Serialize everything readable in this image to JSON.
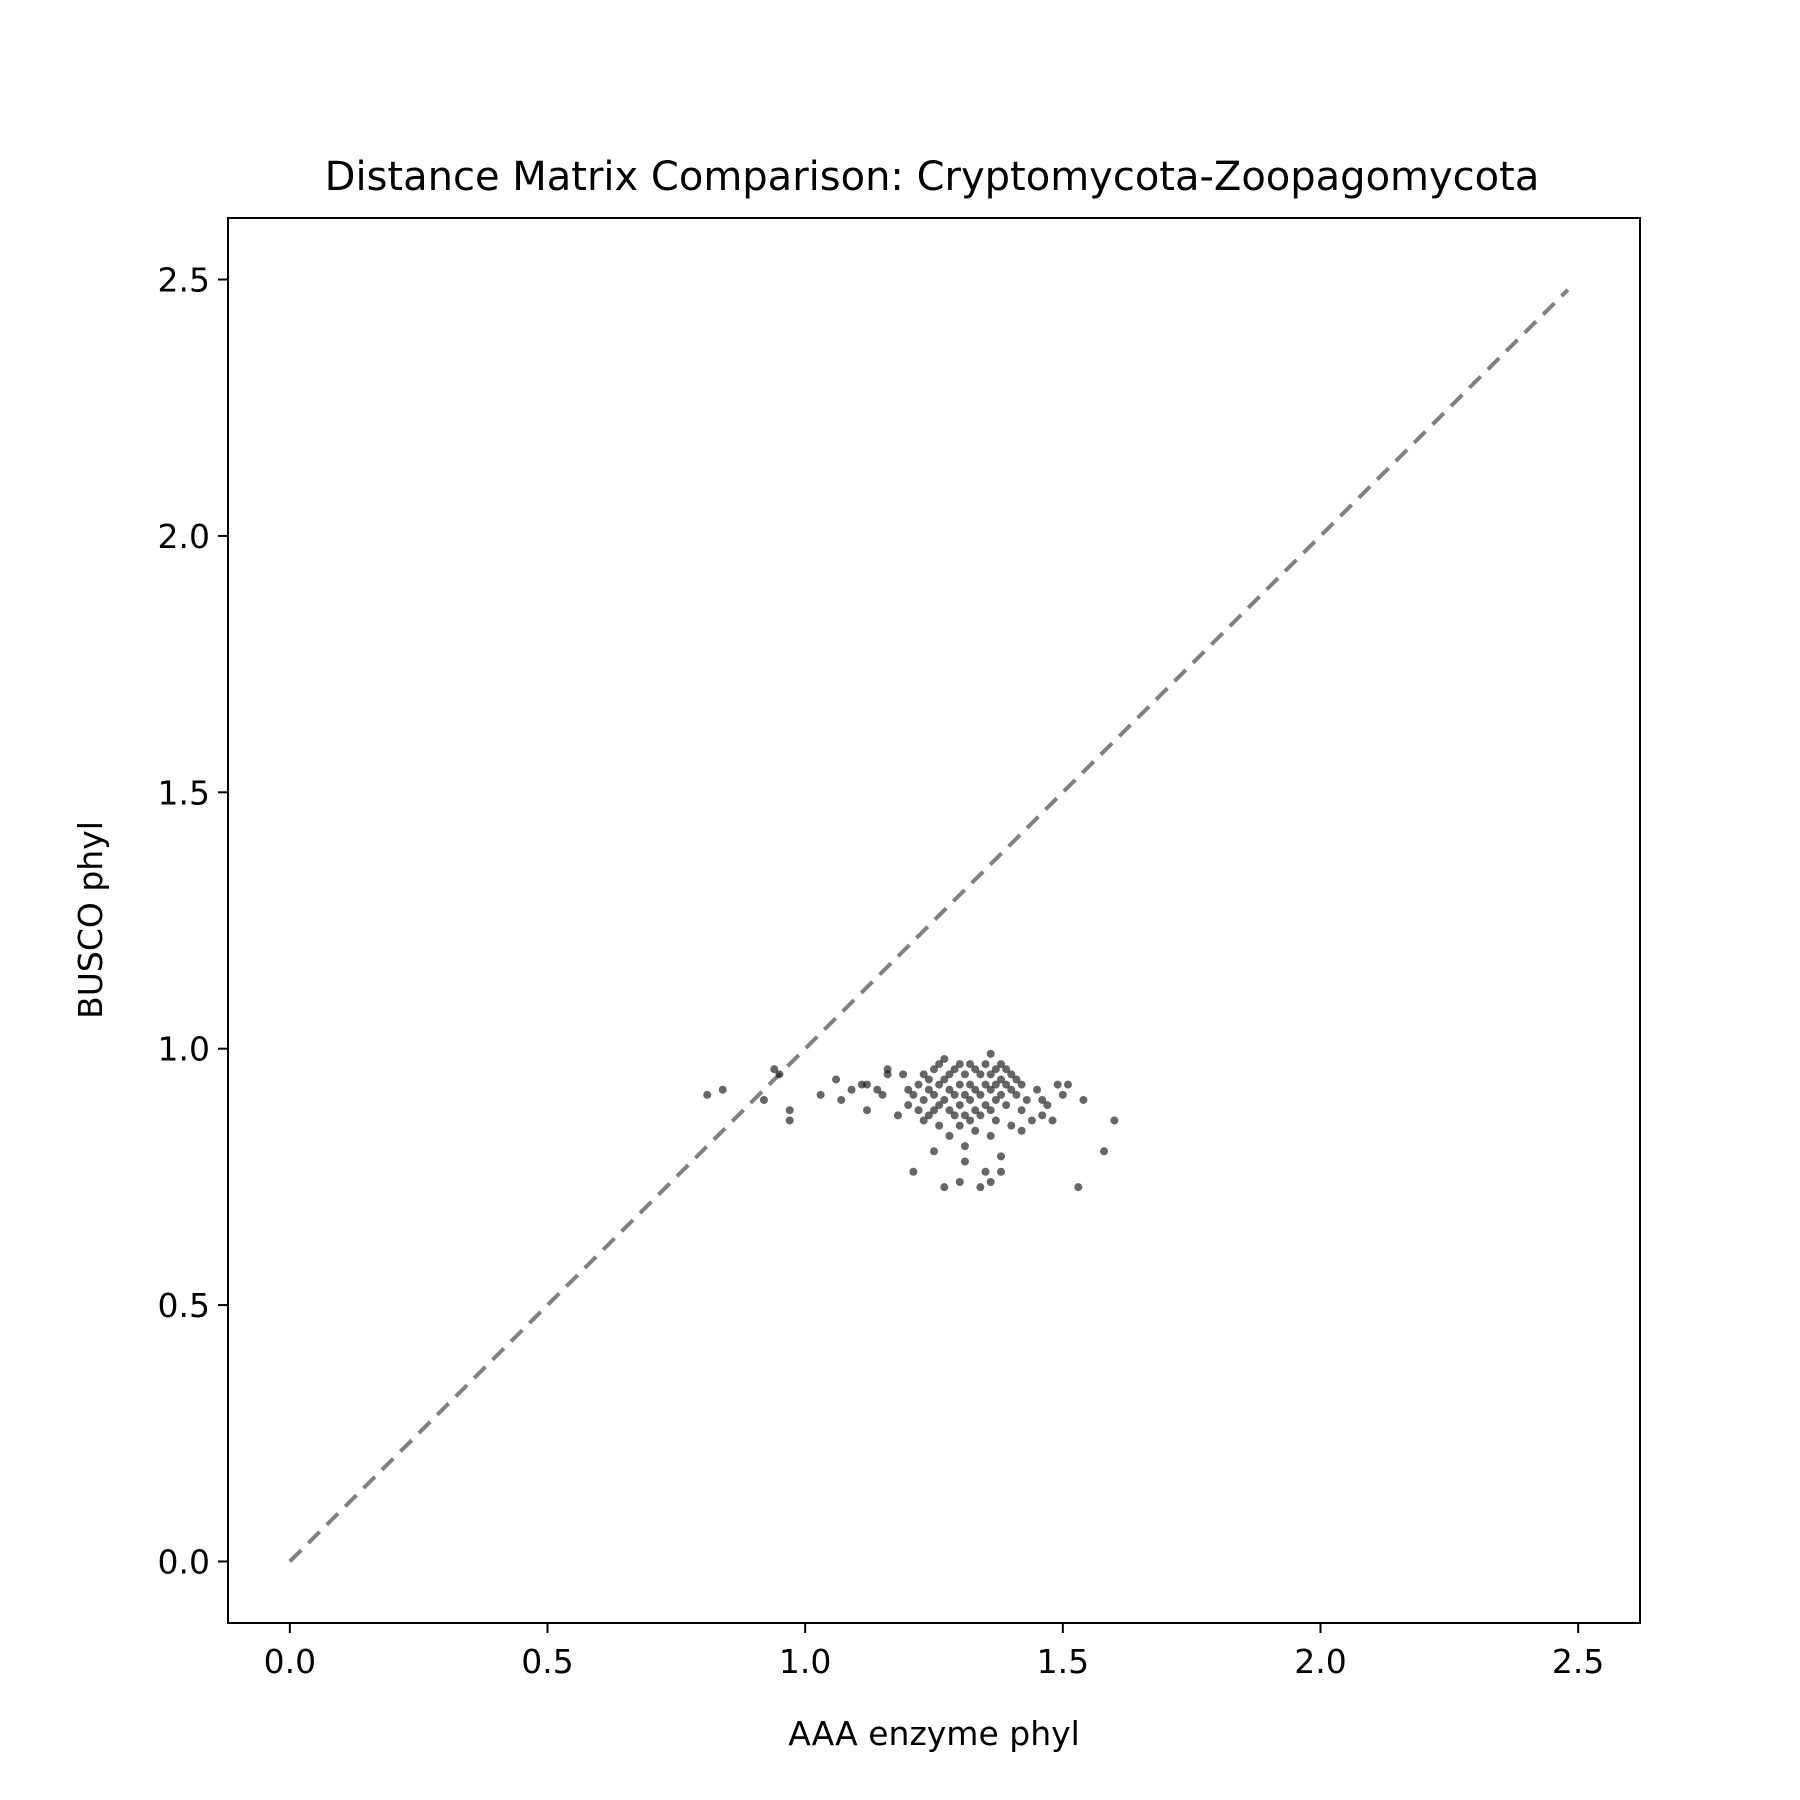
{
  "chart_data": {
    "type": "scatter",
    "title": "Distance Matrix Comparison: Cryptomycota-Zoopagomycota",
    "xlabel": "AAA enzyme phyl",
    "ylabel": "BUSCO phyl",
    "xlim": [
      -0.12,
      2.62
    ],
    "ylim": [
      -0.12,
      2.62
    ],
    "xticks": [
      "0.0",
      "0.5",
      "1.0",
      "1.5",
      "2.0",
      "2.5"
    ],
    "yticks": [
      "0.0",
      "0.5",
      "1.0",
      "1.5",
      "2.0",
      "2.5"
    ],
    "grid": false,
    "reference_line": {
      "x": [
        0.0,
        2.48
      ],
      "y": [
        0.0,
        2.48
      ],
      "style": "dashed",
      "color": "#808080"
    },
    "point_color": "#000000",
    "point_alpha": 0.6,
    "series": [
      {
        "points": [
          [
            0.81,
            0.91
          ],
          [
            0.84,
            0.92
          ],
          [
            0.92,
            0.9
          ],
          [
            0.94,
            0.96
          ],
          [
            0.95,
            0.95
          ],
          [
            0.97,
            0.88
          ],
          [
            0.97,
            0.86
          ],
          [
            1.03,
            0.91
          ],
          [
            1.06,
            0.94
          ],
          [
            1.07,
            0.9
          ],
          [
            1.09,
            0.92
          ],
          [
            1.11,
            0.93
          ],
          [
            1.12,
            0.93
          ],
          [
            1.12,
            0.88
          ],
          [
            1.14,
            0.92
          ],
          [
            1.15,
            0.91
          ],
          [
            1.16,
            0.96
          ],
          [
            1.16,
            0.95
          ],
          [
            1.18,
            0.87
          ],
          [
            1.19,
            0.95
          ],
          [
            1.2,
            0.92
          ],
          [
            1.2,
            0.89
          ],
          [
            1.21,
            0.91
          ],
          [
            1.21,
            0.76
          ],
          [
            1.22,
            0.93
          ],
          [
            1.22,
            0.88
          ],
          [
            1.23,
            0.95
          ],
          [
            1.23,
            0.9
          ],
          [
            1.23,
            0.86
          ],
          [
            1.24,
            0.94
          ],
          [
            1.24,
            0.92
          ],
          [
            1.24,
            0.87
          ],
          [
            1.25,
            0.96
          ],
          [
            1.25,
            0.91
          ],
          [
            1.25,
            0.88
          ],
          [
            1.25,
            0.8
          ],
          [
            1.26,
            0.97
          ],
          [
            1.26,
            0.93
          ],
          [
            1.26,
            0.89
          ],
          [
            1.26,
            0.85
          ],
          [
            1.27,
            0.98
          ],
          [
            1.27,
            0.94
          ],
          [
            1.27,
            0.9
          ],
          [
            1.27,
            0.73
          ],
          [
            1.28,
            0.95
          ],
          [
            1.28,
            0.92
          ],
          [
            1.28,
            0.88
          ],
          [
            1.28,
            0.83
          ],
          [
            1.29,
            0.96
          ],
          [
            1.29,
            0.91
          ],
          [
            1.29,
            0.87
          ],
          [
            1.3,
            0.97
          ],
          [
            1.3,
            0.93
          ],
          [
            1.3,
            0.89
          ],
          [
            1.3,
            0.85
          ],
          [
            1.3,
            0.74
          ],
          [
            1.31,
            0.95
          ],
          [
            1.31,
            0.91
          ],
          [
            1.31,
            0.87
          ],
          [
            1.31,
            0.81
          ],
          [
            1.31,
            0.78
          ],
          [
            1.32,
            0.97
          ],
          [
            1.32,
            0.93
          ],
          [
            1.32,
            0.9
          ],
          [
            1.32,
            0.86
          ],
          [
            1.33,
            0.96
          ],
          [
            1.33,
            0.92
          ],
          [
            1.33,
            0.88
          ],
          [
            1.33,
            0.84
          ],
          [
            1.34,
            0.95
          ],
          [
            1.34,
            0.91
          ],
          [
            1.34,
            0.87
          ],
          [
            1.34,
            0.73
          ],
          [
            1.35,
            0.97
          ],
          [
            1.35,
            0.93
          ],
          [
            1.35,
            0.89
          ],
          [
            1.35,
            0.76
          ],
          [
            1.36,
            0.99
          ],
          [
            1.36,
            0.95
          ],
          [
            1.36,
            0.92
          ],
          [
            1.36,
            0.88
          ],
          [
            1.36,
            0.83
          ],
          [
            1.36,
            0.74
          ],
          [
            1.37,
            0.96
          ],
          [
            1.37,
            0.93
          ],
          [
            1.37,
            0.9
          ],
          [
            1.37,
            0.86
          ],
          [
            1.38,
            0.97
          ],
          [
            1.38,
            0.94
          ],
          [
            1.38,
            0.91
          ],
          [
            1.38,
            0.79
          ],
          [
            1.38,
            0.76
          ],
          [
            1.39,
            0.96
          ],
          [
            1.39,
            0.93
          ],
          [
            1.39,
            0.89
          ],
          [
            1.4,
            0.95
          ],
          [
            1.4,
            0.92
          ],
          [
            1.4,
            0.85
          ],
          [
            1.41,
            0.94
          ],
          [
            1.41,
            0.91
          ],
          [
            1.42,
            0.93
          ],
          [
            1.42,
            0.88
          ],
          [
            1.42,
            0.84
          ],
          [
            1.43,
            0.9
          ],
          [
            1.44,
            0.86
          ],
          [
            1.45,
            0.92
          ],
          [
            1.46,
            0.9
          ],
          [
            1.46,
            0.87
          ],
          [
            1.47,
            0.89
          ],
          [
            1.48,
            0.86
          ],
          [
            1.49,
            0.93
          ],
          [
            1.5,
            0.91
          ],
          [
            1.51,
            0.93
          ],
          [
            1.53,
            0.73
          ],
          [
            1.54,
            0.9
          ],
          [
            1.58,
            0.8
          ],
          [
            1.6,
            0.86
          ]
        ]
      }
    ]
  }
}
